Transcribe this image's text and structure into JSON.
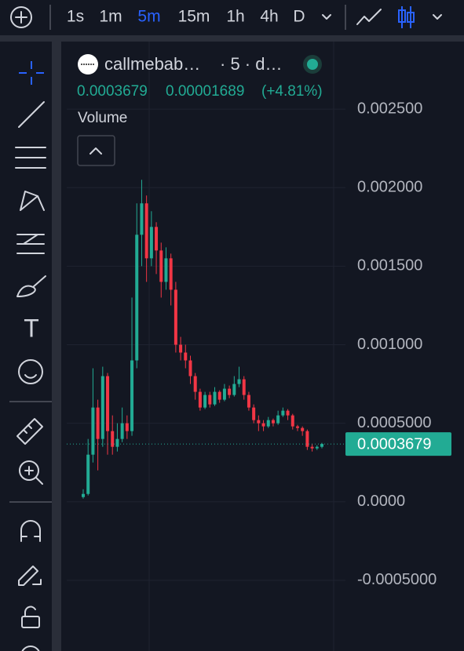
{
  "toolbar": {
    "timeframes": [
      "1s",
      "1m",
      "5m",
      "15m",
      "1h",
      "4h",
      "D"
    ]
  },
  "legend": {
    "symbol": "callmebab…",
    "interval": "· 5 · d…",
    "price": "0.0003679",
    "change": "0.00001689",
    "change_pct": "(+4.81%)",
    "volume": "Volume"
  },
  "chart_data": {
    "type": "candlestick",
    "open": [
      3e-05,
      5e-05,
      0.0003,
      0.0006,
      0.0004,
      0.0008,
      0.00045,
      0.00035,
      0.0004,
      0.0005,
      0.00045,
      0.0009,
      0.0017,
      0.0019,
      0.00155,
      0.00175,
      0.0016,
      0.0014,
      0.00155,
      0.00135,
      0.001,
      0.00095,
      0.0009,
      0.0008,
      0.0007,
      0.0006,
      0.00068,
      0.00062,
      0.0007,
      0.00065,
      0.00072,
      0.00068,
      0.00075,
      0.00078,
      0.00068,
      0.0006,
      0.00052,
      0.0005,
      0.00048,
      0.00052,
      0.0005,
      0.00055,
      0.00058,
      0.00055,
      0.00048,
      0.00047,
      0.00045,
      0.00035,
      0.00034,
      0.00035
    ],
    "high": [
      8e-05,
      0.0004,
      0.00085,
      0.00065,
      0.00086,
      0.00082,
      0.00055,
      0.0005,
      0.0006,
      0.00055,
      0.0013,
      0.0019,
      0.00205,
      0.00195,
      0.00185,
      0.00178,
      0.00165,
      0.00162,
      0.00158,
      0.0014,
      0.00105,
      0.001,
      0.00093,
      0.00082,
      0.00072,
      0.0007,
      0.0007,
      0.00073,
      0.00071,
      0.00075,
      0.00074,
      0.0008,
      0.00086,
      0.0008,
      0.0007,
      0.00062,
      0.00055,
      0.00052,
      0.00054,
      0.00053,
      0.00058,
      0.0006,
      0.00059,
      0.00056,
      0.00049,
      0.00048,
      0.00046,
      0.00037,
      0.00036,
      0.000375
    ],
    "low": [
      2e-05,
      4e-05,
      0.00025,
      0.0002,
      0.00035,
      0.0003,
      0.0003,
      0.00032,
      0.00038,
      0.0004,
      0.00042,
      0.00085,
      0.0015,
      0.0014,
      0.0015,
      0.00145,
      0.0013,
      0.00135,
      0.00125,
      0.00095,
      0.0009,
      0.00085,
      0.00075,
      0.00065,
      0.00058,
      0.00059,
      0.0006,
      0.00061,
      0.00063,
      0.00064,
      0.00066,
      0.00067,
      0.00073,
      0.00065,
      0.00058,
      0.0005,
      0.00045,
      0.00045,
      0.00047,
      0.00048,
      0.00049,
      0.00054,
      0.00052,
      0.00046,
      0.00045,
      0.00042,
      0.00033,
      0.00032,
      0.00033,
      0.00034
    ],
    "close": [
      5e-05,
      0.0003,
      0.0006,
      0.0004,
      0.0008,
      0.00045,
      0.00035,
      0.0004,
      0.0005,
      0.00045,
      0.0009,
      0.0017,
      0.0019,
      0.00155,
      0.00175,
      0.0016,
      0.0014,
      0.00155,
      0.00135,
      0.001,
      0.00095,
      0.0009,
      0.0008,
      0.0007,
      0.0006,
      0.00068,
      0.00062,
      0.0007,
      0.00065,
      0.00072,
      0.00068,
      0.00075,
      0.00078,
      0.00068,
      0.0006,
      0.00052,
      0.0005,
      0.00048,
      0.00052,
      0.0005,
      0.00055,
      0.00058,
      0.00055,
      0.00048,
      0.00047,
      0.00045,
      0.00035,
      0.00034,
      0.00035,
      0.0003679
    ],
    "up_color": "#22ab94",
    "down_color": "#f23645",
    "last_price": 0.0003679,
    "ylim": [
      -0.00095,
      0.00293
    ],
    "yticks": [
      {
        "value": 0.0025,
        "label": "0.002500"
      },
      {
        "value": 0.002,
        "label": "0.002000"
      },
      {
        "value": 0.0015,
        "label": "0.001500"
      },
      {
        "value": 0.001,
        "label": "0.001000"
      },
      {
        "value": 0.0005,
        "label": "0.0005000"
      },
      {
        "value": 0,
        "label": "0.0000"
      },
      {
        "value": -0.0005,
        "label": "-0.0005000"
      }
    ],
    "grid": true
  }
}
